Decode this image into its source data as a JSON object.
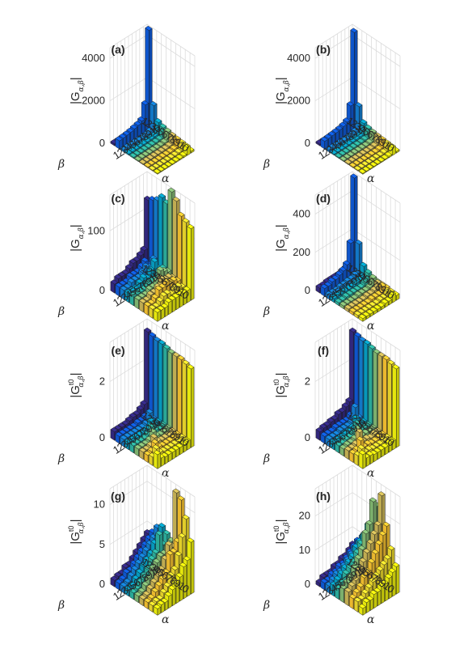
{
  "chart_data": [
    {
      "panel": "(a)",
      "type": "bar3d",
      "title": "(a)",
      "zlabel": "|G_{α,β}|",
      "zlabel_base": "|G",
      "zlabel_sub": "α,β",
      "zlabel_sup": "",
      "zlabel_close": "|",
      "xlabel": "α",
      "ylabel": "β",
      "alpha_ticks": "12345678910",
      "beta_ticks": "12345678910",
      "zlim": [
        0,
        4500
      ],
      "zticks": [
        "0",
        "2000",
        "4000"
      ],
      "ztick_values": [
        0,
        2000,
        4000
      ],
      "spike_beta": 1,
      "spike_value": 4700,
      "diag_value": 1300,
      "colors": [
        "#352a87",
        "#0f5cdd",
        "#1481d6",
        "#06a4ca",
        "#2eb7a4",
        "#87bf77",
        "#d1bb59",
        "#fec832",
        "#f5e02e",
        "#f9fb0e"
      ],
      "grid": [
        [
          180,
          150,
          130,
          110,
          110,
          100,
          100,
          90,
          90,
          90
        ],
        [
          150,
          4700,
          1300,
          650,
          550,
          500,
          450,
          420,
          400,
          380
        ],
        [
          130,
          1300,
          180,
          110,
          100,
          100,
          90,
          90,
          80,
          80
        ],
        [
          110,
          650,
          110,
          90,
          80,
          70,
          60,
          60,
          60,
          60
        ],
        [
          110,
          550,
          100,
          80,
          70,
          60,
          60,
          50,
          50,
          50
        ],
        [
          100,
          500,
          100,
          70,
          60,
          60,
          50,
          50,
          50,
          40
        ],
        [
          100,
          450,
          90,
          60,
          60,
          50,
          50,
          40,
          40,
          40
        ],
        [
          90,
          420,
          90,
          60,
          50,
          50,
          40,
          40,
          40,
          40
        ],
        [
          90,
          400,
          80,
          60,
          50,
          50,
          40,
          40,
          40,
          40
        ],
        [
          90,
          380,
          80,
          60,
          50,
          40,
          40,
          40,
          40,
          40
        ]
      ]
    },
    {
      "panel": "(b)",
      "type": "bar3d",
      "title": "(b)",
      "zlabel": "|G_{α,β}|",
      "zlabel_base": "|G",
      "zlabel_sub": "α,β",
      "zlabel_sup": "",
      "zlabel_close": "|",
      "xlabel": "α",
      "ylabel": "β",
      "alpha_ticks": "12345678910",
      "beta_ticks": "12345678910",
      "zlim": [
        0,
        4500
      ],
      "zticks": [
        "0",
        "2000",
        "4000"
      ],
      "ztick_values": [
        0,
        2000,
        4000
      ],
      "colors": [
        "#352a87",
        "#0f5cdd",
        "#1481d6",
        "#06a4ca",
        "#2eb7a4",
        "#87bf77",
        "#d1bb59",
        "#fec832",
        "#f5e02e",
        "#f9fb0e"
      ],
      "grid": [
        [
          160,
          140,
          120,
          100,
          100,
          90,
          90,
          80,
          80,
          80
        ],
        [
          140,
          4600,
          1250,
          600,
          500,
          450,
          420,
          400,
          380,
          360
        ],
        [
          120,
          1250,
          160,
          100,
          90,
          90,
          80,
          80,
          70,
          70
        ],
        [
          100,
          600,
          100,
          80,
          70,
          60,
          60,
          50,
          50,
          50
        ],
        [
          100,
          500,
          90,
          70,
          60,
          60,
          50,
          50,
          50,
          40
        ],
        [
          90,
          450,
          90,
          60,
          60,
          50,
          50,
          40,
          40,
          40
        ],
        [
          90,
          420,
          80,
          60,
          50,
          50,
          40,
          40,
          40,
          40
        ],
        [
          80,
          400,
          80,
          50,
          50,
          40,
          40,
          40,
          40,
          40
        ],
        [
          80,
          380,
          70,
          50,
          50,
          40,
          40,
          40,
          40,
          40
        ],
        [
          80,
          360,
          70,
          50,
          40,
          40,
          40,
          40,
          40,
          40
        ]
      ]
    },
    {
      "panel": "(c)",
      "type": "bar3d",
      "title": "(c)",
      "zlabel": "|G_{α,β}|",
      "zlabel_base": "|G",
      "zlabel_sub": "α,β",
      "zlabel_sup": "",
      "zlabel_close": "|",
      "xlabel": "α",
      "ylabel": "β",
      "alpha_ticks": "12345678910",
      "beta_ticks": "12345678910",
      "zlim": [
        0,
        160
      ],
      "zticks": [
        "0",
        "100"
      ],
      "ztick_values": [
        0,
        100
      ],
      "colors": [
        "#352a87",
        "#0f5cdd",
        "#1481d6",
        "#06a4ca",
        "#2eb7a4",
        "#87bf77",
        "#d1bb59",
        "#fec832",
        "#f5e02e",
        "#f9fb0e"
      ],
      "grid": [
        [
          120,
          125,
          130,
          140,
          135,
          160,
          150,
          130,
          125,
          120
        ],
        [
          40,
          20,
          35,
          25,
          30,
          30,
          25,
          25,
          20,
          20
        ],
        [
          35,
          30,
          25,
          40,
          30,
          35,
          30,
          30,
          25,
          20
        ],
        [
          30,
          25,
          30,
          30,
          20,
          40,
          30,
          30,
          25,
          20
        ],
        [
          30,
          20,
          25,
          20,
          20,
          25,
          35,
          35,
          20,
          20
        ],
        [
          25,
          20,
          20,
          25,
          20,
          20,
          25,
          30,
          25,
          20
        ],
        [
          20,
          20,
          20,
          20,
          15,
          20,
          20,
          30,
          25,
          20
        ],
        [
          20,
          15,
          20,
          15,
          15,
          15,
          20,
          20,
          20,
          15
        ],
        [
          20,
          15,
          15,
          15,
          15,
          15,
          15,
          15,
          15,
          15
        ],
        [
          15,
          15,
          15,
          15,
          15,
          15,
          15,
          15,
          15,
          15
        ]
      ]
    },
    {
      "panel": "(d)",
      "type": "bar3d",
      "title": "(d)",
      "zlabel": "|G_{α,β}|",
      "zlabel_base": "|G",
      "zlabel_sub": "α,β",
      "zlabel_sup": "",
      "zlabel_close": "|",
      "xlabel": "α",
      "ylabel": "β",
      "alpha_ticks": "12345678910",
      "beta_ticks": "12345678910",
      "zlim": [
        0,
        500
      ],
      "zticks": [
        "0",
        "200",
        "400"
      ],
      "ztick_values": [
        0,
        200,
        400
      ],
      "colors": [
        "#352a87",
        "#0f5cdd",
        "#1481d6",
        "#06a4ca",
        "#2eb7a4",
        "#87bf77",
        "#d1bb59",
        "#fec832",
        "#f5e02e",
        "#f9fb0e"
      ],
      "grid": [
        [
          50,
          40,
          40,
          35,
          30,
          30,
          30,
          30,
          25,
          25
        ],
        [
          40,
          520,
          190,
          90,
          70,
          60,
          50,
          50,
          40,
          40
        ],
        [
          40,
          190,
          40,
          30,
          30,
          25,
          25,
          20,
          20,
          20
        ],
        [
          35,
          90,
          30,
          25,
          20,
          20,
          20,
          20,
          20,
          20
        ],
        [
          30,
          70,
          30,
          20,
          20,
          20,
          20,
          20,
          15,
          15
        ],
        [
          30,
          60,
          25,
          20,
          20,
          20,
          15,
          15,
          15,
          15
        ],
        [
          30,
          50,
          25,
          20,
          20,
          15,
          15,
          15,
          15,
          15
        ],
        [
          30,
          50,
          20,
          20,
          20,
          15,
          15,
          15,
          15,
          15
        ],
        [
          25,
          40,
          20,
          20,
          15,
          15,
          15,
          15,
          15,
          15
        ],
        [
          25,
          40,
          20,
          20,
          15,
          15,
          15,
          15,
          15,
          15
        ]
      ]
    },
    {
      "panel": "(e)",
      "type": "bar3d",
      "title": "(e)",
      "zlabel": "|G^{t0}_{α,β}|",
      "zlabel_base": "|G",
      "zlabel_sub": "α,β",
      "zlabel_sup": "t0",
      "zlabel_close": "|",
      "xlabel": "α",
      "ylabel": "β",
      "alpha_ticks": "12345678910",
      "beta_ticks": "12345678910",
      "zlim": [
        0,
        3.4
      ],
      "zticks": [
        "0",
        "2"
      ],
      "ztick_values": [
        0,
        2
      ],
      "colors": [
        "#352a87",
        "#0f5cdd",
        "#1481d6",
        "#06a4ca",
        "#2eb7a4",
        "#87bf77",
        "#d1bb59",
        "#fec832",
        "#f5e02e",
        "#f9fb0e"
      ],
      "grid": [
        [
          3.1,
          3.05,
          3.0,
          3.0,
          2.95,
          2.9,
          2.9,
          2.9,
          2.85,
          2.8
        ],
        [
          0.6,
          0.4,
          0.3,
          0.3,
          0.3,
          0.3,
          0.3,
          0.3,
          0.3,
          0.3
        ],
        [
          0.5,
          0.35,
          0.6,
          0.3,
          0.25,
          0.25,
          0.25,
          0.25,
          0.25,
          0.25
        ],
        [
          0.4,
          0.3,
          0.3,
          0.5,
          0.3,
          0.25,
          0.25,
          0.25,
          0.25,
          0.25
        ],
        [
          0.4,
          0.3,
          0.25,
          0.3,
          0.5,
          0.3,
          0.25,
          0.25,
          0.25,
          0.25
        ],
        [
          0.35,
          0.25,
          0.25,
          0.25,
          0.3,
          0.5,
          0.3,
          0.25,
          0.25,
          0.25
        ],
        [
          0.3,
          0.25,
          0.25,
          0.25,
          0.25,
          0.3,
          0.5,
          0.3,
          0.25,
          0.25
        ],
        [
          0.3,
          0.25,
          0.25,
          0.25,
          0.25,
          0.25,
          0.3,
          0.5,
          0.3,
          0.25
        ],
        [
          0.3,
          0.25,
          0.25,
          0.25,
          0.25,
          0.25,
          0.25,
          0.3,
          0.5,
          0.3
        ],
        [
          0.3,
          0.25,
          0.25,
          0.25,
          0.25,
          0.25,
          0.25,
          0.25,
          0.3,
          0.5
        ]
      ]
    },
    {
      "panel": "(f)",
      "type": "bar3d",
      "title": "(f)",
      "zlabel": "|G^{t0}_{α,β}|",
      "zlabel_base": "|G",
      "zlabel_sub": "α,β",
      "zlabel_sup": "t0",
      "zlabel_close": "|",
      "xlabel": "α",
      "ylabel": "β",
      "alpha_ticks": "12345678910",
      "beta_ticks": "12345678910",
      "zlim": [
        0,
        3.4
      ],
      "zticks": [
        "0",
        "2"
      ],
      "ztick_values": [
        0,
        2
      ],
      "colors": [
        "#352a87",
        "#0f5cdd",
        "#1481d6",
        "#06a4ca",
        "#2eb7a4",
        "#87bf77",
        "#d1bb59",
        "#fec832",
        "#f5e02e",
        "#f9fb0e"
      ],
      "grid": [
        [
          3.1,
          3.05,
          3.0,
          3.0,
          2.95,
          2.9,
          2.9,
          2.9,
          2.85,
          2.8
        ],
        [
          0.7,
          0.4,
          0.35,
          0.3,
          0.3,
          0.3,
          0.3,
          0.3,
          0.3,
          0.3
        ],
        [
          0.6,
          0.4,
          0.8,
          0.3,
          0.3,
          0.3,
          0.3,
          0.3,
          0.3,
          0.3
        ],
        [
          0.5,
          0.3,
          0.35,
          0.6,
          0.3,
          0.3,
          0.25,
          0.25,
          0.25,
          0.25
        ],
        [
          0.5,
          0.3,
          0.3,
          0.35,
          0.6,
          0.3,
          0.3,
          0.25,
          0.25,
          0.25
        ],
        [
          0.4,
          0.3,
          0.3,
          0.3,
          0.35,
          0.6,
          0.3,
          0.3,
          0.25,
          0.25
        ],
        [
          0.4,
          0.3,
          0.3,
          0.3,
          0.3,
          0.35,
          0.7,
          0.3,
          0.3,
          0.25
        ],
        [
          0.35,
          0.25,
          0.25,
          0.25,
          0.3,
          0.3,
          0.35,
          0.6,
          0.3,
          0.3
        ],
        [
          0.35,
          0.25,
          0.25,
          0.25,
          0.25,
          0.3,
          0.3,
          0.35,
          0.5,
          0.3
        ],
        [
          0.3,
          0.25,
          0.25,
          0.25,
          0.25,
          0.25,
          0.3,
          0.3,
          0.35,
          0.5
        ]
      ]
    },
    {
      "panel": "(g)",
      "type": "bar3d",
      "title": "(g)",
      "zlabel": "|G^{t0}_{α,β}|",
      "zlabel_base": "|G",
      "zlabel_sub": "α,β",
      "zlabel_sup": "t0",
      "zlabel_close": "|",
      "xlabel": "α",
      "ylabel": "β",
      "alpha_ticks": "12345678910",
      "beta_ticks": "12345678910",
      "zlim": [
        0,
        12
      ],
      "zticks": [
        "0",
        "5",
        "10"
      ],
      "ztick_values": [
        0,
        5,
        10
      ],
      "colors": [
        "#352a87",
        "#0f5cdd",
        "#1481d6",
        "#06a4ca",
        "#2eb7a4",
        "#87bf77",
        "#d1bb59",
        "#fec832",
        "#f5e02e",
        "#f9fb0e"
      ],
      "grid": [
        [
          4.0,
          4.5,
          5.5,
          6.0,
          5.5,
          5.0,
          11.5,
          11.0,
          9.0,
          6.5
        ],
        [
          3.5,
          4.0,
          4.5,
          5.0,
          4.5,
          4.5,
          5.0,
          6.0,
          7.0,
          4.5
        ],
        [
          3.0,
          3.5,
          4.0,
          4.5,
          6.0,
          4.0,
          5.5,
          5.0,
          5.0,
          4.0
        ],
        [
          2.5,
          3.0,
          3.5,
          3.5,
          4.0,
          4.0,
          4.0,
          5.0,
          3.5,
          3.0
        ],
        [
          2.0,
          2.5,
          3.0,
          3.0,
          3.5,
          3.5,
          3.0,
          3.0,
          3.0,
          2.5
        ],
        [
          1.5,
          2.0,
          2.5,
          2.5,
          2.5,
          3.0,
          2.5,
          2.5,
          2.0,
          2.0
        ],
        [
          1.5,
          1.5,
          2.0,
          2.0,
          2.0,
          2.0,
          2.0,
          2.0,
          1.5,
          1.5
        ],
        [
          1.0,
          1.5,
          1.5,
          1.5,
          1.5,
          1.5,
          1.5,
          1.5,
          1.0,
          1.0
        ],
        [
          1.0,
          1.0,
          1.0,
          1.0,
          1.0,
          1.0,
          1.0,
          1.0,
          1.0,
          1.0
        ],
        [
          0.8,
          0.8,
          0.8,
          0.8,
          0.8,
          0.8,
          0.8,
          0.8,
          0.8,
          0.8
        ]
      ]
    },
    {
      "panel": "(h)",
      "type": "bar3d",
      "title": "(h)",
      "zlabel": "|G^{t0}_{α,β}|",
      "zlabel_base": "|G",
      "zlabel_sub": "α,β",
      "zlabel_sup": "t0",
      "zlabel_close": "|",
      "xlabel": "α",
      "ylabel": "β",
      "alpha_ticks": "12345678910",
      "beta_ticks": "12345678910",
      "zlim": [
        0,
        28
      ],
      "zticks": [
        "0",
        "10",
        "20"
      ],
      "ztick_values": [
        0,
        10,
        20
      ],
      "colors": [
        "#352a87",
        "#0f5cdd",
        "#1481d6",
        "#06a4ca",
        "#2eb7a4",
        "#87bf77",
        "#d1bb59",
        "#fec832",
        "#f5e02e",
        "#f9fb0e"
      ],
      "grid": [
        [
          6,
          8,
          10,
          12,
          14,
          22,
          26,
          18,
          12,
          8
        ],
        [
          5,
          7,
          9,
          12,
          16,
          24,
          18,
          16,
          10,
          7
        ],
        [
          4,
          6,
          8,
          11,
          14,
          18,
          16,
          14,
          9,
          6
        ],
        [
          4,
          5,
          7,
          10,
          12,
          16,
          14,
          12,
          8,
          5
        ],
        [
          3,
          4,
          6,
          8,
          10,
          12,
          12,
          10,
          7,
          5
        ],
        [
          3,
          4,
          5,
          7,
          8,
          10,
          10,
          8,
          6,
          4
        ],
        [
          2,
          3,
          4,
          6,
          7,
          8,
          8,
          7,
          5,
          4
        ],
        [
          2,
          3,
          4,
          5,
          6,
          6,
          6,
          5,
          4,
          3
        ],
        [
          2,
          2,
          3,
          4,
          4,
          5,
          5,
          4,
          3,
          3
        ],
        [
          1,
          2,
          2,
          3,
          3,
          4,
          4,
          3,
          3,
          2
        ]
      ]
    }
  ]
}
